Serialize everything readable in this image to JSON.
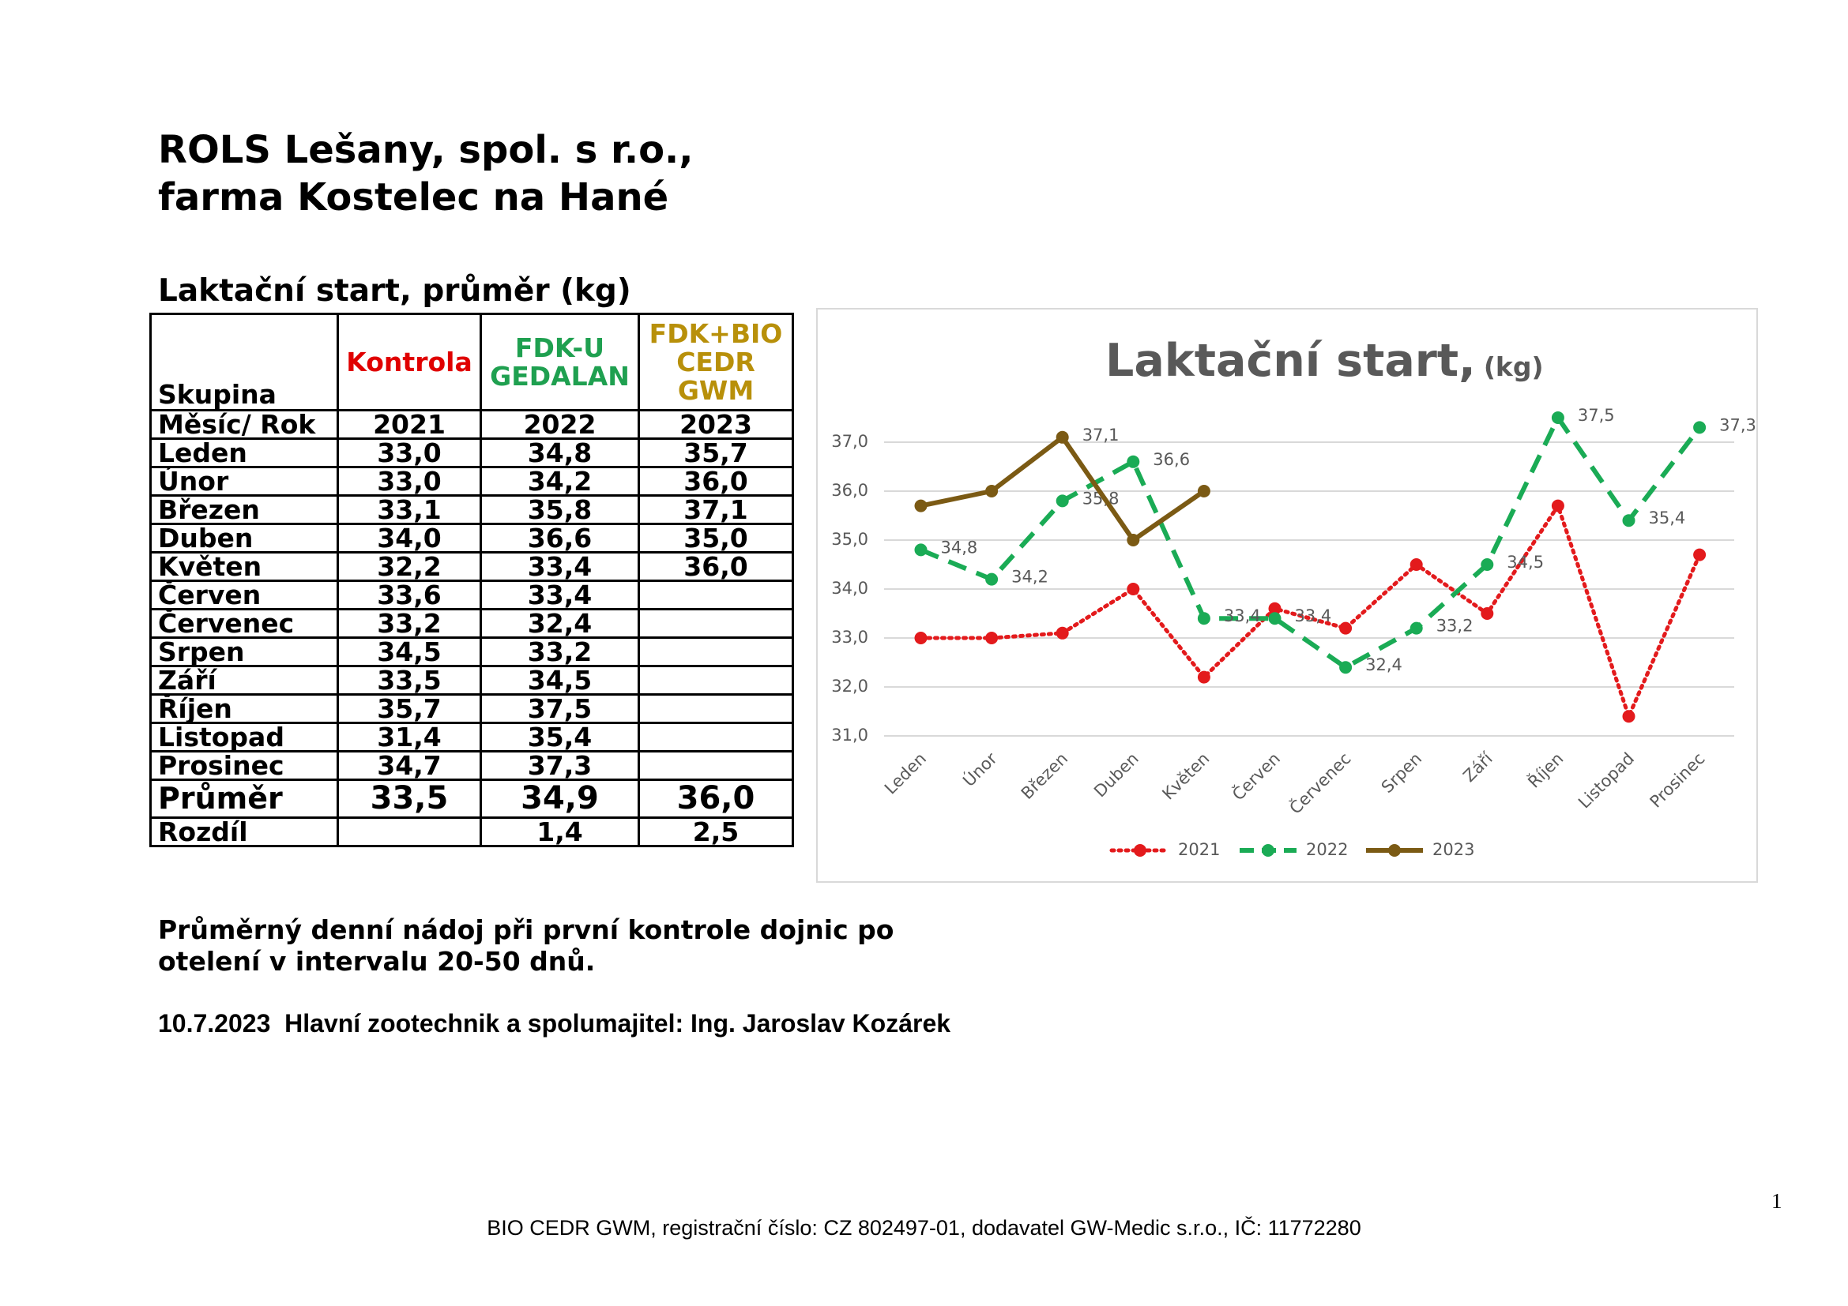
{
  "header": {
    "title_lines": [
      "ROLS Lešany, spol. s r.o.,",
      "farma Kostelec na Hané"
    ]
  },
  "table": {
    "caption": "Laktační start, průměr (kg)",
    "header_row": [
      [
        "Skupina"
      ],
      [
        "Kontrola"
      ],
      [
        "FDK-U",
        "GEDALAN"
      ],
      [
        "FDK+BIO",
        "CEDR",
        "GWM"
      ]
    ],
    "year_row": [
      "Měsíc/ Rok",
      "2021",
      "2022",
      "2023"
    ],
    "rows": [
      [
        "Leden",
        "33,0",
        "34,8",
        "35,7"
      ],
      [
        "Únor",
        "33,0",
        "34,2",
        "36,0"
      ],
      [
        "Březen",
        "33,1",
        "35,8",
        "37,1"
      ],
      [
        "Duben",
        "34,0",
        "36,6",
        "35,0"
      ],
      [
        "Květen",
        "32,2",
        "33,4",
        "36,0"
      ],
      [
        "Červen",
        "33,6",
        "33,4"
      ],
      [
        "Červenec",
        "33,2",
        "32,4"
      ],
      [
        "Srpen",
        "34,5",
        "33,2"
      ],
      [
        "Září",
        "33,5",
        "34,5"
      ],
      [
        "Říjen",
        "35,7",
        "37,5"
      ],
      [
        "Listopad",
        "31,4",
        "35,4"
      ],
      [
        "Prosinec",
        "34,7",
        "37,3"
      ]
    ],
    "average": [
      "Průměr",
      "33,5",
      "34,9",
      "36,0"
    ],
    "difference": [
      "Rozdíl",
      null,
      "1,4",
      "2,5"
    ]
  },
  "chart_data": {
    "type": "line",
    "title": "Laktační start,",
    "subtitle": "(kg)",
    "categories": [
      "Leden",
      "Únor",
      "Březen",
      "Duben",
      "Květen",
      "Červen",
      "Červenec",
      "Srpen",
      "Září",
      "Říjen",
      "Listopad",
      "Prosinec"
    ],
    "series": [
      {
        "name": "2021",
        "color": "#e31a1c",
        "line_style": "dotted",
        "values": [
          33.0,
          33.0,
          33.1,
          34.0,
          32.2,
          33.6,
          33.2,
          34.5,
          33.5,
          35.7,
          31.4,
          34.7
        ]
      },
      {
        "name": "2022",
        "color": "#1aab55",
        "line_style": "dashed",
        "values": [
          34.8,
          34.2,
          35.8,
          36.6,
          33.4,
          33.4,
          32.4,
          33.2,
          34.5,
          37.5,
          35.4,
          37.3
        ],
        "value_labels": [
          "34,8",
          "34,2",
          "35,8",
          "36,6",
          "33,4",
          "33,4",
          "32,4",
          "33,2",
          "34,5",
          "37,5",
          "35,4",
          "37,3"
        ]
      },
      {
        "name": "2023",
        "color": "#7b5a14",
        "line_style": "solid",
        "values": [
          35.7,
          36.0,
          37.1,
          35.0,
          36.0,
          null,
          null,
          null,
          null,
          null,
          null,
          null
        ],
        "value_labels": [
          null,
          null,
          "37,1",
          null,
          null,
          null,
          null,
          null,
          null,
          null,
          null,
          null
        ]
      }
    ],
    "ylim": [
      31,
      37
    ],
    "yticks": [
      {
        "value": 31,
        "label": "31,0"
      },
      {
        "value": 32,
        "label": "32,0"
      },
      {
        "value": 33,
        "label": "33,0"
      },
      {
        "value": 34,
        "label": "34,0"
      },
      {
        "value": 35,
        "label": "35,0"
      },
      {
        "value": 36,
        "label": "36,0"
      },
      {
        "value": 37,
        "label": "37,0"
      }
    ],
    "grid": true,
    "legend": "bottom"
  },
  "notes": [
    "Průměrný denní nádoj při první kontrole dojnic po",
    "otelení v intervalu 20-50 dnů."
  ],
  "signature": "10.7.2023  Hlavní zootechnik a spolumajitel: Ing. Jaroslav Kozárek",
  "footer": "BIO CEDR GWM, registrační číslo: CZ 802497-01, dodavatel GW-Medic s.r.o., IČ: 11772280",
  "page_number": "1"
}
